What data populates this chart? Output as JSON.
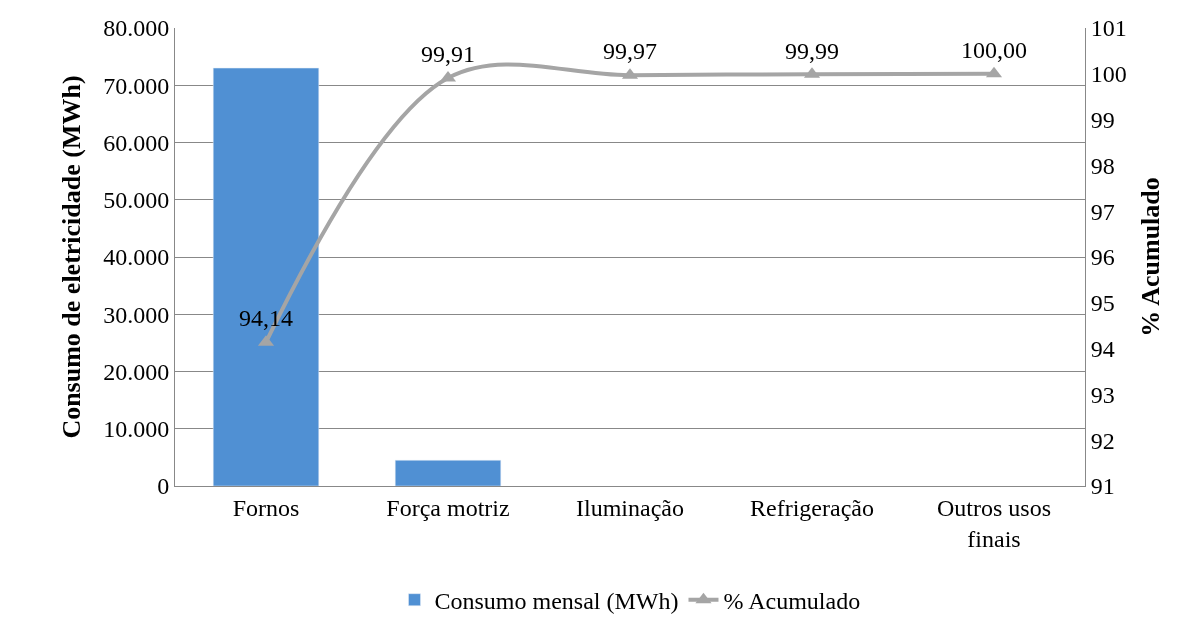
{
  "chart_data": {
    "type": "bar",
    "categories": [
      "Fornos",
      "Força motriz",
      "Iluminação",
      "Refrigeração",
      "Outros usos finais"
    ],
    "ylabel": "Consumo de eletricidade (MWh)",
    "y2label": "% Acumulado",
    "series": [
      {
        "name": "Consumo mensal (MWh)",
        "color": "#5090d3",
        "values": [
          73000,
          4500,
          null,
          null,
          null
        ]
      },
      {
        "name": "% Acumulado",
        "type": "line",
        "axis": "y2",
        "color": "#a5a5a5",
        "marker": "triangle",
        "values": [
          94.14,
          99.91,
          99.97,
          99.99,
          100.0
        ],
        "value_labels": [
          "94,14",
          "99,91",
          "99,97",
          "99,99",
          "100,00"
        ]
      }
    ],
    "ylim": [
      0,
      80000
    ],
    "yticks": [
      {
        "value": 0,
        "label": "0"
      },
      {
        "value": 10000,
        "label": "10.000"
      },
      {
        "value": 20000,
        "label": "20.000"
      },
      {
        "value": 30000,
        "label": "30.000"
      },
      {
        "value": 40000,
        "label": "40.000"
      },
      {
        "value": 50000,
        "label": "50.000"
      },
      {
        "value": 60000,
        "label": "60.000"
      },
      {
        "value": 70000,
        "label": "70.000"
      },
      {
        "value": 80000,
        "label": "80.000"
      }
    ],
    "y2lim": [
      91,
      101
    ],
    "y2ticks": [
      91,
      92,
      93,
      94,
      95,
      96,
      97,
      98,
      99,
      100,
      101
    ],
    "grid": "y",
    "legend": "bottom"
  }
}
